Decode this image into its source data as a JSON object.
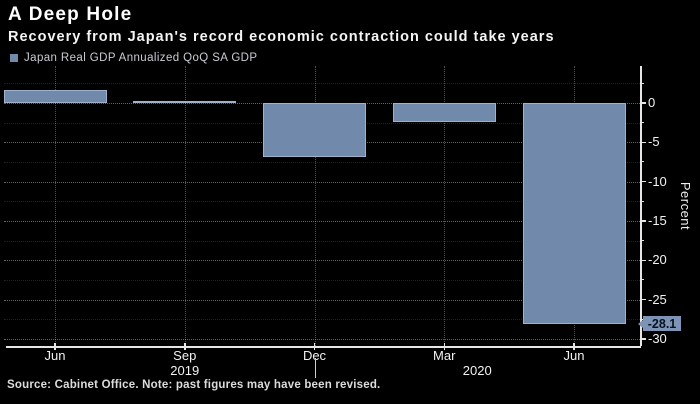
{
  "header": {
    "title": "A Deep Hole",
    "subtitle": "Recovery from Japan's record economic contraction could take years"
  },
  "legend": {
    "label": "Japan Real GDP Annualized QoQ SA GDP"
  },
  "footer": {
    "source_note": "Source: Cabinet Office. Note: past figures may have been revised."
  },
  "colors": {
    "background": "#000000",
    "bar": "#7189AB",
    "axis": "#E6E6E6",
    "tick_text": "#F2F2F2",
    "legend_text": "#C7CCD2",
    "callout_bg": "#7E94B6",
    "callout_text": "#06121F"
  },
  "chart_data": {
    "type": "bar",
    "title": "A Deep Hole",
    "subtitle": "Recovery from Japan's record economic contraction could take years",
    "series_name": "Japan Real GDP Annualized QoQ SA GDP",
    "categories": [
      "Jun 2019",
      "Sep 2019",
      "Dec 2019",
      "Mar 2020",
      "Jun 2020"
    ],
    "x_tick_labels": [
      "Jun",
      "Sep",
      "Dec",
      "Mar",
      "Jun"
    ],
    "year_labels": [
      "2019",
      "2020"
    ],
    "year_divider_category_index": 2,
    "values": [
      1.6,
      0.2,
      -6.9,
      -2.4,
      -28.1
    ],
    "ylabel": "Percent",
    "y_ticks": [
      0,
      -5,
      -10,
      -15,
      -20,
      -25,
      -30
    ],
    "y_minor_step": 2.5,
    "ylim": [
      -30.9,
      4.7
    ],
    "grid": true,
    "legend_position": "top-left",
    "annotation": {
      "text": "-28.1",
      "value": -28.1,
      "category": "Jun 2020"
    },
    "source": "Source: Cabinet Office. Note: past figures may have been revised."
  }
}
